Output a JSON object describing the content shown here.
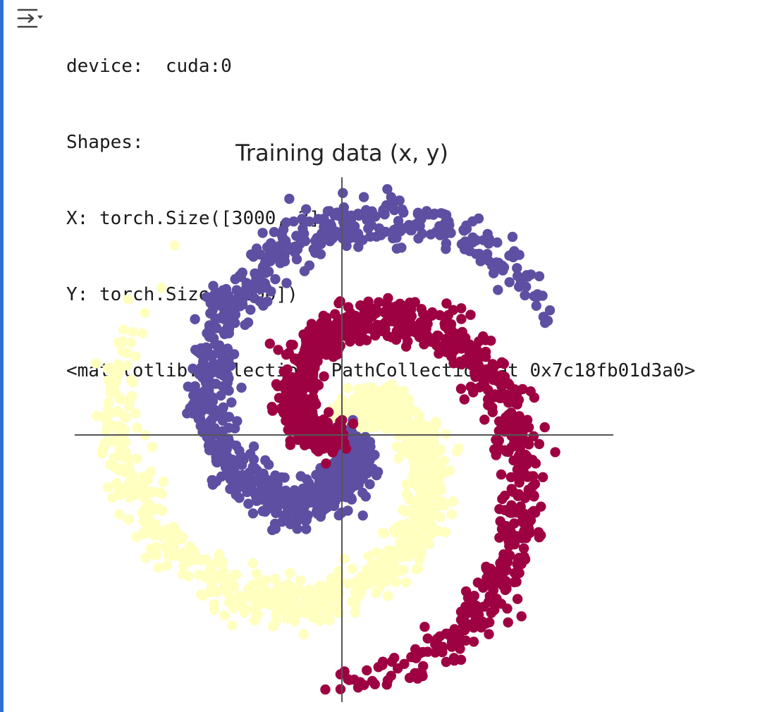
{
  "output": {
    "lines": [
      "device:  cuda:0",
      "Shapes:",
      "X: torch.Size([3000, 2])",
      "Y: torch.Size([3000])",
      "<matplotlib.collections.PathCollection at 0x7c18fb01d3a0>"
    ],
    "toggle_icon": "collapse-output-icon"
  },
  "chart_data": {
    "type": "scatter",
    "title": "Training data (x, y)",
    "xlim": [
      -1.1,
      1.1
    ],
    "ylim": [
      -1.1,
      1.1
    ],
    "axes": "crosshair through origin, no ticks",
    "grid": false,
    "n_points": 3000,
    "series": [
      {
        "class": 0,
        "color": "#ffffbf",
        "theta_start": 0.0,
        "points": 1000,
        "shape": "spiral arm from origin curving through lower-left-of-center, wrapping left to top"
      },
      {
        "class": 1,
        "color": "#5e4fa2",
        "theta_start": 2.0944,
        "points": 1000,
        "shape": "spiral arm from origin up-left, over top, down right side to bottom-right"
      },
      {
        "class": 2,
        "color": "#9e0142",
        "theta_start": 4.1888,
        "points": 1000,
        "shape": "spiral arm from origin up-right, down right side, across bottom to left"
      }
    ],
    "spiral": {
      "r_max": 1.0,
      "turn": 5.0,
      "noise": 0.03
    }
  }
}
